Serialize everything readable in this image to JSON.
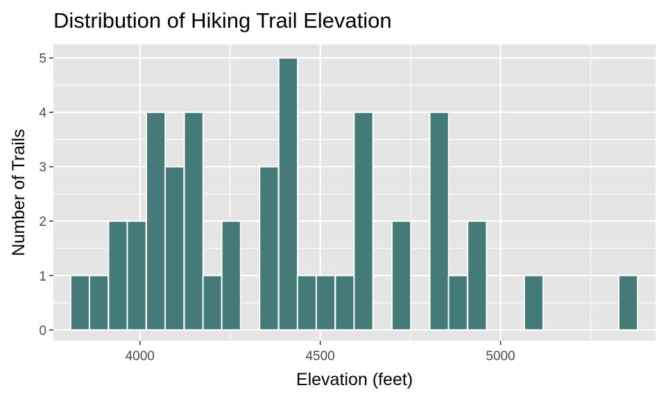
{
  "chart_data": {
    "type": "histogram",
    "title": "Distribution of Hiking Trail Elevation",
    "xlabel": "Elevation (feet)",
    "ylabel": "Number of Trails",
    "xlim": [
      3760,
      5430
    ],
    "ylim": [
      -0.2,
      5.25
    ],
    "x_ticks": [
      4000,
      4500,
      5000
    ],
    "x_tick_labels": [
      "4000",
      "4500",
      "5000"
    ],
    "y_ticks": [
      0,
      1,
      2,
      3,
      4,
      5
    ],
    "y_tick_labels": [
      "0",
      "1",
      "2",
      "3",
      "4",
      "5"
    ],
    "bin_width": 52.4,
    "bins": [
      {
        "x": 3834,
        "count": 1
      },
      {
        "x": 3886,
        "count": 1
      },
      {
        "x": 3939,
        "count": 2
      },
      {
        "x": 3991,
        "count": 2
      },
      {
        "x": 4044,
        "count": 4
      },
      {
        "x": 4096,
        "count": 3
      },
      {
        "x": 4149,
        "count": 4
      },
      {
        "x": 4201,
        "count": 1
      },
      {
        "x": 4253,
        "count": 2
      },
      {
        "x": 4306,
        "count": 0
      },
      {
        "x": 4358,
        "count": 3
      },
      {
        "x": 4411,
        "count": 5
      },
      {
        "x": 4463,
        "count": 1
      },
      {
        "x": 4515,
        "count": 1
      },
      {
        "x": 4568,
        "count": 1
      },
      {
        "x": 4620,
        "count": 4
      },
      {
        "x": 4673,
        "count": 0
      },
      {
        "x": 4725,
        "count": 2
      },
      {
        "x": 4777,
        "count": 0
      },
      {
        "x": 4830,
        "count": 4
      },
      {
        "x": 4882,
        "count": 1
      },
      {
        "x": 4935,
        "count": 2
      },
      {
        "x": 4987,
        "count": 0
      },
      {
        "x": 5039,
        "count": 0
      },
      {
        "x": 5092,
        "count": 1
      },
      {
        "x": 5144,
        "count": 0
      },
      {
        "x": 5197,
        "count": 0
      },
      {
        "x": 5249,
        "count": 0
      },
      {
        "x": 5301,
        "count": 0
      },
      {
        "x": 5354,
        "count": 1
      }
    ],
    "colors": {
      "bar_fill": "#447A78",
      "bar_outline": "#FFFFFF",
      "panel_background": "#E5E5E5",
      "grid": "#FFFFFF"
    },
    "grid": true,
    "legend": "none"
  }
}
